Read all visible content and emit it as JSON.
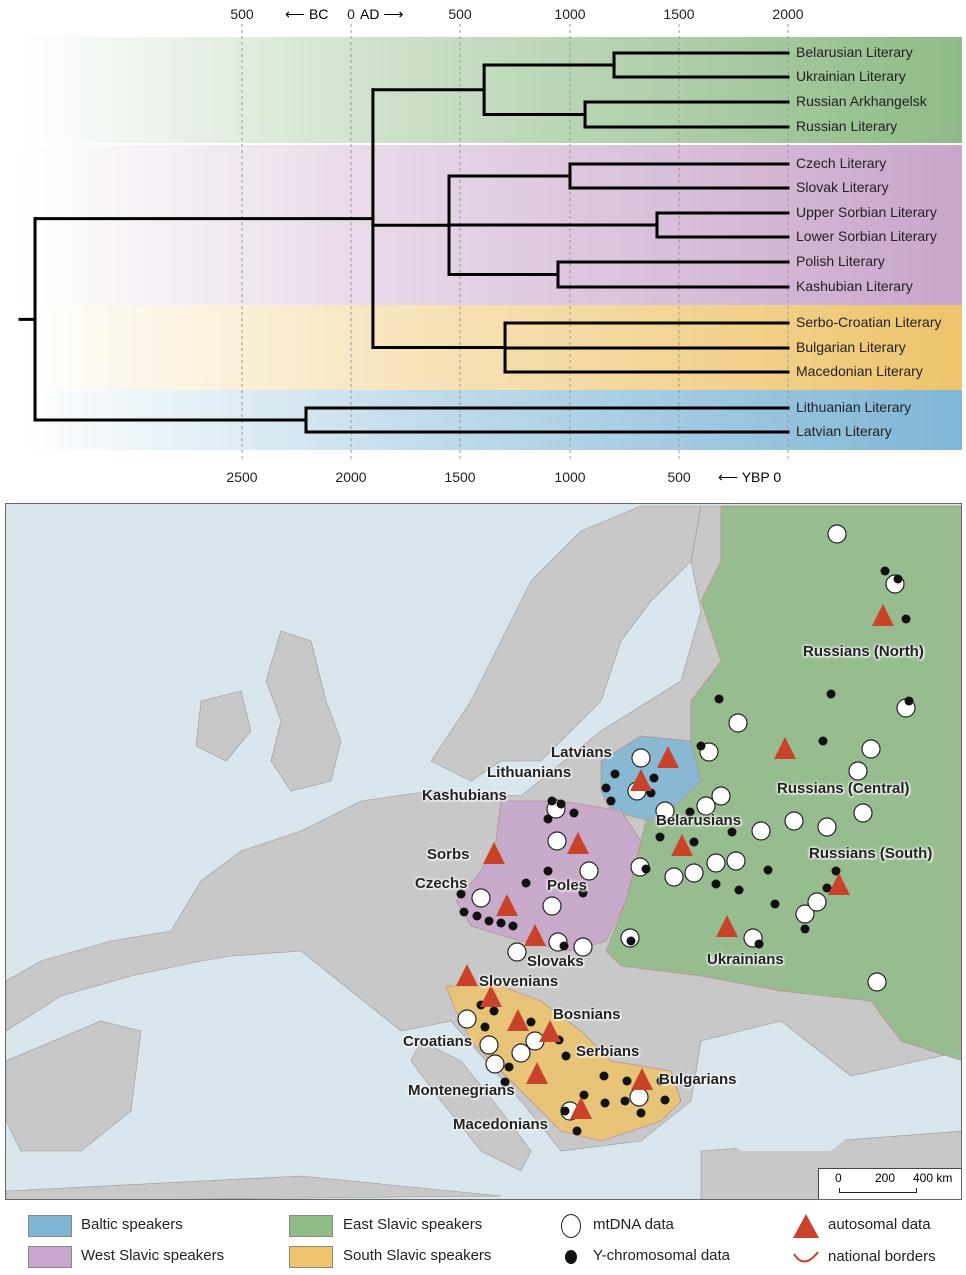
{
  "top_axis": {
    "ticks": [
      "500",
      "0",
      "500",
      "1000",
      "1500",
      "2000"
    ],
    "bc_label": "BC",
    "ad_label": "AD"
  },
  "bottom_axis": {
    "ticks": [
      "2500",
      "2000",
      "1500",
      "1000",
      "500",
      "0"
    ],
    "unit_label": "YBP"
  },
  "tree": {
    "leaves": [
      "Belarusian Literary",
      "Ukrainian Literary",
      "Russian Arkhangelsk",
      "Russian Literary",
      "Czech Literary",
      "Slovak Literary",
      "Upper Sorbian Literary",
      "Lower Sorbian Literary",
      "Polish Literary",
      "Kashubian Literary",
      "Serbo-Croatian Literary",
      "Bulgarian Literary",
      "Macedonian Literary",
      "Lithuanian Literary",
      "Latvian Literary"
    ],
    "topology": {
      "age_ybp": 3454,
      "children": [
        {
          "age_ybp": 1904,
          "children": [
            {
              "age_ybp": 1394,
              "children": [
                {
                  "age_ybp": 798,
                  "children": [
                    0,
                    1
                  ]
                },
                {
                  "age_ybp": 931,
                  "children": [
                    2,
                    3
                  ]
                }
              ]
            },
            {
              "age_ybp": 1555,
              "children": [
                {
                  "age_ybp": 1000,
                  "children": [
                    4,
                    5
                  ]
                },
                {
                  "age_ybp": 601,
                  "children": [
                    6,
                    7
                  ]
                },
                {
                  "age_ybp": 1055,
                  "children": [
                    8,
                    9
                  ]
                }
              ]
            },
            {
              "age_ybp": 1298,
              "children": [
                10,
                11,
                12
              ]
            }
          ]
        },
        {
          "age_ybp": 2211,
          "children": [
            13,
            14
          ]
        }
      ]
    }
  },
  "colors": {
    "baltic": "#7fb6d6",
    "east_slavic": "#8fbb87",
    "west_slavic": "#c9a6cb",
    "south_slavic": "#eec46c",
    "triangle": "#c9432a",
    "border": "#d0502a"
  },
  "map": {
    "labels": [
      "Russians (North)",
      "Latvians",
      "Lithuanians",
      "Kashubians",
      "Belarusians",
      "Russians (Central)",
      "Russians (South)",
      "Sorbs",
      "Czechs",
      "Poles",
      "Slovaks",
      "Ukrainians",
      "Slovenians",
      "Bosnians",
      "Croatians",
      "Serbians",
      "Bulgarians",
      "Montenegrians",
      "Macedonians"
    ],
    "scale": {
      "ticks": [
        "0",
        "200",
        "400 km"
      ]
    }
  },
  "legend": {
    "baltic": "Baltic speakers",
    "east": "East Slavic speakers",
    "mtdna": "mtDNA data",
    "autosomal": "autosomal data",
    "west": "West Slavic speakers",
    "south": "South Slavic speakers",
    "ychrom": "Y-chromosomal data",
    "borders": "national borders"
  }
}
